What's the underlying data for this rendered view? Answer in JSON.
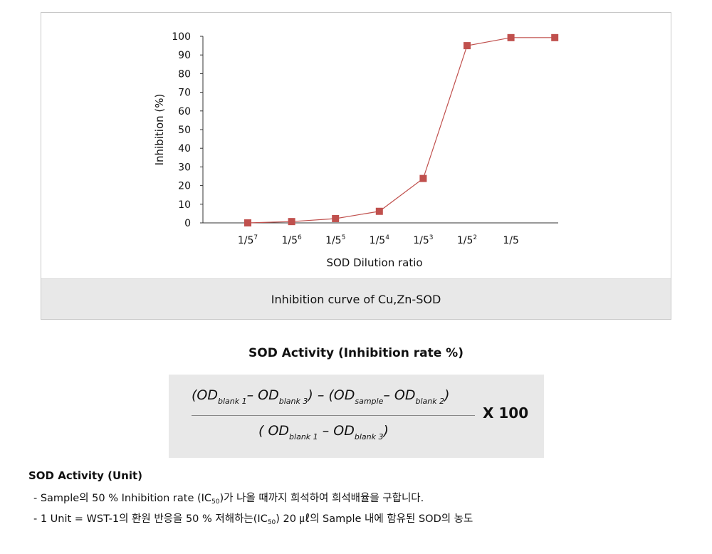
{
  "chart_data": {
    "type": "line",
    "xlabel": "SOD Dilution ratio",
    "ylabel": "Inhibition (%)",
    "ylim": [
      0,
      100
    ],
    "y_ticks": [
      "0",
      "10",
      "20",
      "30",
      "40",
      "50",
      "60",
      "70",
      "80",
      "90",
      "100"
    ],
    "x_tick_labels": [
      {
        "base": "1/5",
        "exp": "7"
      },
      {
        "base": "1/5",
        "exp": "6"
      },
      {
        "base": "1/5",
        "exp": "5"
      },
      {
        "base": "1/5",
        "exp": "4"
      },
      {
        "base": "1/5",
        "exp": "3"
      },
      {
        "base": "1/5",
        "exp": "2"
      },
      {
        "base": "1/5",
        "exp": ""
      }
    ],
    "points": [
      {
        "x": "1/5^7",
        "y": 0
      },
      {
        "x": "1/5^6",
        "y": 0.7
      },
      {
        "x": "1/5^5",
        "y": 2.3
      },
      {
        "x": "1/5^4",
        "y": 6.2
      },
      {
        "x": "1/5^3",
        "y": 23.8
      },
      {
        "x": "1/5^2",
        "y": 95
      },
      {
        "x": "1/5",
        "y": 99.3
      },
      {
        "x": "1",
        "y": 99.3
      }
    ],
    "series_color": "#c0504d",
    "grid": false,
    "legend": "none"
  },
  "caption": "Inhibition curve of Cu,Zn-SOD",
  "activity_title": "SOD Activity (Inhibition rate %)",
  "formula": {
    "numerator": {
      "open": "(OD",
      "sub1": "blank 1",
      "mid1": "– OD",
      "sub2": "blank 3",
      "mid2": ") – (OD",
      "sub3": "sample",
      "mid3": "– OD",
      "sub4": "blank 2",
      "close": ")"
    },
    "denominator": {
      "open": "( OD",
      "sub1": "blank 1",
      "mid": " – OD",
      "sub2": "blank 3",
      "close": ")"
    },
    "multiplier": "X 100"
  },
  "unit_title": "SOD Activity (Unit)",
  "notes": {
    "line1": {
      "pre": "- Sample의 50 % Inhibition rate (IC",
      "sub": "50",
      "post": ")가 나올 때까지 희석하여 희석배율을 구합니다."
    },
    "line2": {
      "pre": "- 1 Unit = WST-1의 환원 반응을 50 % 저해하는(IC",
      "sub": "50",
      "post": ") 20 ㎕의 Sample 내에 함유된 SOD의 농도"
    }
  }
}
